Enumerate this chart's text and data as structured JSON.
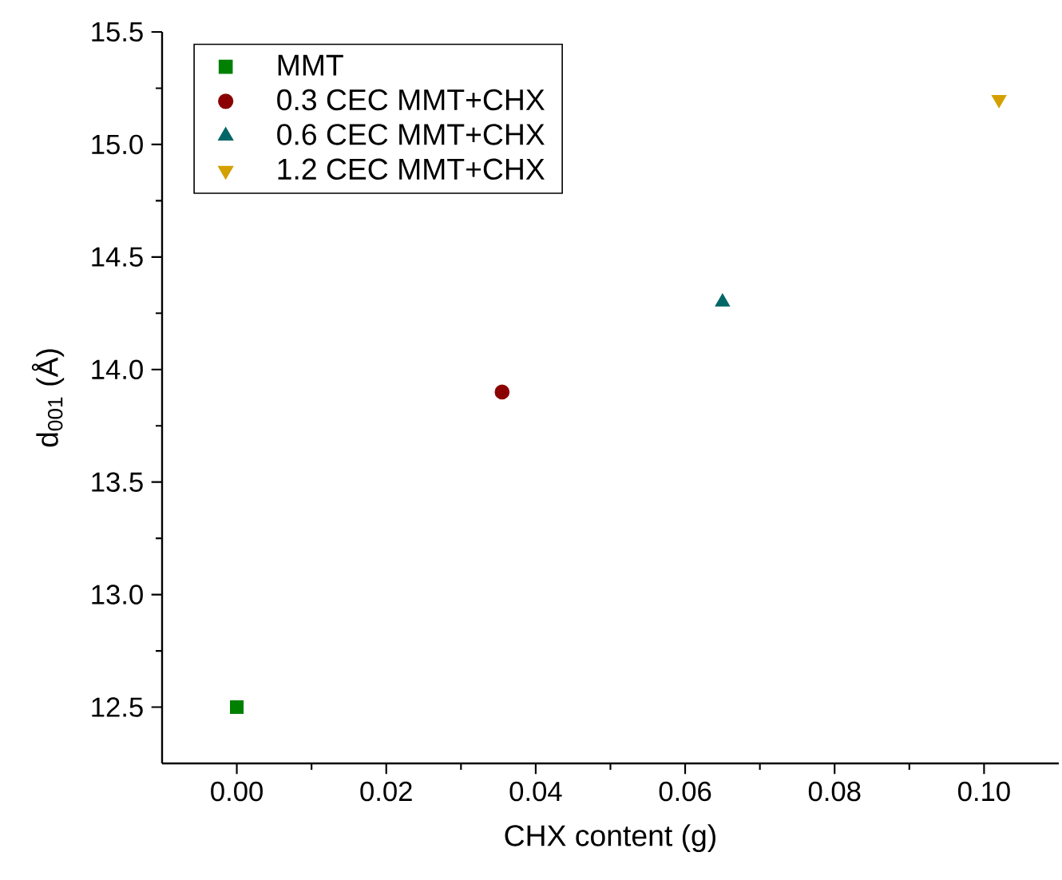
{
  "chart_data": {
    "type": "scatter",
    "xlabel": "CHX content (g)",
    "ylabel": "d$_{001}$ (Å)",
    "xlim": [
      -0.01,
      0.11
    ],
    "ylim": [
      12.25,
      15.5
    ],
    "xticks": [
      {
        "value": 0,
        "label": "0.00"
      },
      0.02,
      0.04,
      0.06,
      0.08,
      {
        "value": 0.1,
        "label": "0.10"
      }
    ],
    "yticks": [
      12.5,
      {
        "value": 13,
        "label": "13.0"
      },
      13.5,
      {
        "value": 14,
        "label": "14.0"
      },
      14.5,
      {
        "value": 15,
        "label": "15.0"
      },
      15.5
    ],
    "legend": "top left",
    "series": [
      {
        "name": "MMT",
        "color": "#008000",
        "marker": "square",
        "x": [
          0
        ],
        "values": [
          12.5
        ]
      },
      {
        "name": "0.3 CEC MMT+CHX",
        "color": "#8b0000",
        "marker": "circle",
        "x": [
          0.0355
        ],
        "values": [
          13.9
        ]
      },
      {
        "name": "0.6 CEC MMT+CHX",
        "color": "#006666",
        "marker": "triangle",
        "x": [
          0.065
        ],
        "values": [
          14.3
        ]
      },
      {
        "name": "1.2 CEC MMT+CHX",
        "color": "#d4a000",
        "marker": "triangle down",
        "x": [
          0.102
        ],
        "values": [
          15.2
        ]
      }
    ]
  }
}
